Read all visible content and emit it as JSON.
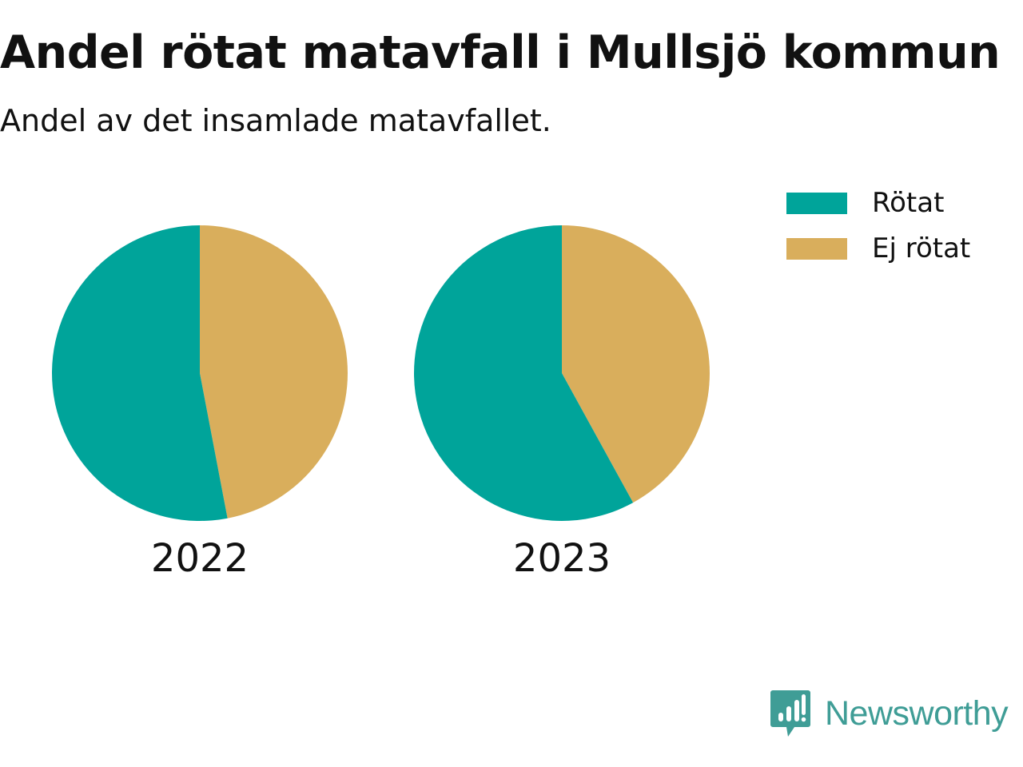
{
  "title": "Andel rötat matavfall i Mullsjö kommun",
  "subtitle": "Andel av det insamlade matavfallet.",
  "legend": [
    {
      "label": "Rötat",
      "color": "#00a49a"
    },
    {
      "label": "Ej rötat",
      "color": "#d9ae5c"
    }
  ],
  "chart_data": [
    {
      "type": "pie",
      "label": "2022",
      "slices": [
        {
          "name": "Rötat",
          "value": 53,
          "color": "#00a49a"
        },
        {
          "name": "Ej rötat",
          "value": 47,
          "color": "#d9ae5c"
        }
      ]
    },
    {
      "type": "pie",
      "label": "2023",
      "slices": [
        {
          "name": "Rötat",
          "value": 58,
          "color": "#00a49a"
        },
        {
          "name": "Ej rötat",
          "value": 42,
          "color": "#d9ae5c"
        }
      ]
    }
  ],
  "brand": {
    "name": "Newsworthy",
    "icon": "newsworthy-logo-icon",
    "color": "#3f9d96"
  }
}
